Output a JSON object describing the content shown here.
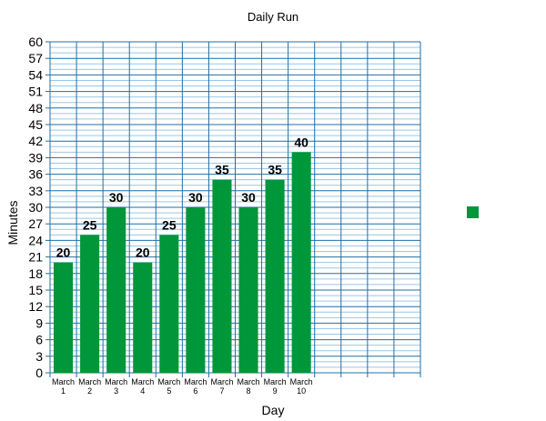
{
  "chart_data": {
    "type": "bar",
    "title": "Daily Run",
    "xlabel": "Day",
    "ylabel": "Minutes",
    "categories": [
      [
        "March",
        "1"
      ],
      [
        "March",
        "2"
      ],
      [
        "March",
        "3"
      ],
      [
        "March",
        "4"
      ],
      [
        "March",
        "5"
      ],
      [
        "March",
        "6"
      ],
      [
        "March",
        "7"
      ],
      [
        "March",
        "8"
      ],
      [
        "March",
        "9"
      ],
      [
        "March",
        "10"
      ]
    ],
    "values": [
      20,
      25,
      30,
      20,
      25,
      30,
      35,
      30,
      35,
      40
    ],
    "ylim": [
      0,
      60
    ],
    "ytick_step": 3,
    "empty_slots": 4,
    "grid": true,
    "legend": "right",
    "colors": {
      "bar": "#00963a",
      "grid_major": "#1f6fa8",
      "grid_minor": "#9cc6e4",
      "legend": "#00963a"
    }
  }
}
